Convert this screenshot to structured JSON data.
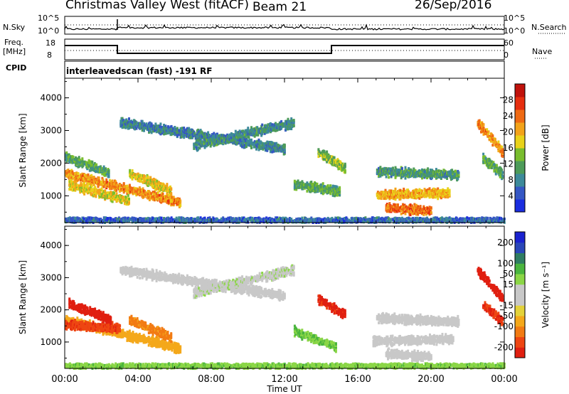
{
  "header": {
    "station": "Christmas Valley West (fitACF)",
    "beam": "Beam 21",
    "date": "26/Sep/2016",
    "cpid_label": "CPID",
    "cpid_value": "interleavedscan (fast) -191 RF"
  },
  "nsky_panel": {
    "left_label": "N.Sky",
    "right_label": "N.Search",
    "left_ticks": [
      "10^5",
      "10^0"
    ],
    "right_ticks": [
      "10^5",
      "10^0"
    ]
  },
  "freq_panel": {
    "left_label_line1": "Freq.",
    "left_label_line2": "[MHz]",
    "right_label": "Nave",
    "left_ticks": [
      "18",
      "8"
    ],
    "right_ticks": [
      "60",
      "0"
    ]
  },
  "colors": {
    "power": [
      "#1a2ddf",
      "#3557c4",
      "#3d8a9a",
      "#4d9b59",
      "#79bd2e",
      "#e9d21a",
      "#f3a31a",
      "#ef6a13",
      "#e62e0f",
      "#c0120b"
    ],
    "velocity_neg": [
      "#e01f10",
      "#ee4612",
      "#f27b13",
      "#f4a81a",
      "#e3d23a"
    ],
    "velocity_pos": [
      "#8bd646",
      "#4ab53e",
      "#2f7c62",
      "#2a47b8",
      "#1a22cf"
    ],
    "velocity_ground": "#c8c8c8"
  },
  "chart_data": [
    {
      "type": "heatmap",
      "name": "power",
      "xlabel": "",
      "ylabel": "Slant Range [km]",
      "colorbar_label": "Power [dB]",
      "colorbar_ticks": [
        "4",
        "8",
        "12",
        "16",
        "20",
        "24",
        "28"
      ],
      "colorbar_range": [
        0,
        32
      ],
      "ylim": [
        180,
        4600
      ],
      "y_ticks": [
        "1000",
        "2000",
        "3000",
        "4000"
      ],
      "xlim": [
        0,
        24
      ],
      "echo_regions": [
        {
          "start_hr": 0.0,
          "end_hr": 6.3,
          "range_start_km": 1750,
          "range_end_km": 850,
          "value": 22
        },
        {
          "start_hr": 0.2,
          "end_hr": 3.5,
          "range_start_km": 1400,
          "range_end_km": 900,
          "value": 18
        },
        {
          "start_hr": 0.0,
          "end_hr": 2.4,
          "range_start_km": 2250,
          "range_end_km": 1750,
          "value": 11
        },
        {
          "start_hr": 3.5,
          "end_hr": 5.8,
          "range_start_km": 1750,
          "range_end_km": 1200,
          "value": 18
        },
        {
          "start_hr": 3.0,
          "end_hr": 12.0,
          "range_start_km": 3300,
          "range_end_km": 2500,
          "value": 8
        },
        {
          "start_hr": 7.0,
          "end_hr": 12.5,
          "range_start_km": 2600,
          "range_end_km": 3300,
          "value": 9
        },
        {
          "start_hr": 12.5,
          "end_hr": 15.0,
          "range_start_km": 1400,
          "range_end_km": 1200,
          "value": 12
        },
        {
          "start_hr": 13.8,
          "end_hr": 15.3,
          "range_start_km": 2400,
          "range_end_km": 1900,
          "value": 14
        },
        {
          "start_hr": 17.0,
          "end_hr": 21.0,
          "range_start_km": 1100,
          "range_end_km": 1150,
          "value": 20
        },
        {
          "start_hr": 17.5,
          "end_hr": 20.0,
          "range_start_km": 700,
          "range_end_km": 600,
          "value": 24
        },
        {
          "start_hr": 17.0,
          "end_hr": 21.5,
          "range_start_km": 1800,
          "range_end_km": 1700,
          "value": 10
        },
        {
          "start_hr": 22.5,
          "end_hr": 23.9,
          "range_start_km": 3300,
          "range_end_km": 2400,
          "value": 22
        },
        {
          "start_hr": 22.8,
          "end_hr": 23.9,
          "range_start_km": 2200,
          "range_end_km": 1700,
          "value": 12
        },
        {
          "start_hr": 0.0,
          "end_hr": 24.0,
          "range_start_km": 320,
          "range_end_km": 320,
          "value": 6
        }
      ]
    },
    {
      "type": "heatmap",
      "name": "velocity",
      "xlabel": "Time UT",
      "ylabel": "Slant Range [km]",
      "colorbar_label": "Velocity [m s⁻¹]",
      "colorbar_ticks": [
        "-200",
        "-100",
        "-50",
        "-15",
        "15",
        "50",
        "100",
        "200"
      ],
      "colorbar_range": [
        -250,
        250
      ],
      "ylim": [
        180,
        4600
      ],
      "y_ticks": [
        "1000",
        "2000",
        "3000",
        "4000"
      ],
      "x_ticks": [
        "00:00",
        "04:00",
        "08:00",
        "12:00",
        "16:00",
        "20:00",
        "00:00"
      ],
      "xlim": [
        0,
        24
      ],
      "echo_regions": [
        {
          "start_hr": 0.0,
          "end_hr": 6.3,
          "range_start_km": 1750,
          "range_end_km": 850,
          "value": -60
        },
        {
          "start_hr": 0.0,
          "end_hr": 3.0,
          "range_start_km": 1600,
          "range_end_km": 1500,
          "value": -150
        },
        {
          "start_hr": 0.2,
          "end_hr": 2.5,
          "range_start_km": 2250,
          "range_end_km": 1750,
          "value": -180
        },
        {
          "start_hr": 3.5,
          "end_hr": 5.8,
          "range_start_km": 1750,
          "range_end_km": 1200,
          "value": -90
        },
        {
          "start_hr": 3.0,
          "end_hr": 12.0,
          "range_start_km": 3300,
          "range_end_km": 2500,
          "value": 0
        },
        {
          "start_hr": 7.0,
          "end_hr": 12.5,
          "range_start_km": 2600,
          "range_end_km": 3300,
          "value": 5
        },
        {
          "start_hr": 12.5,
          "end_hr": 14.8,
          "range_start_km": 1400,
          "range_end_km": 900,
          "value": 40
        },
        {
          "start_hr": 13.8,
          "end_hr": 15.3,
          "range_start_km": 2400,
          "range_end_km": 1900,
          "value": -170
        },
        {
          "start_hr": 16.8,
          "end_hr": 21.2,
          "range_start_km": 1100,
          "range_end_km": 1150,
          "value": 0
        },
        {
          "start_hr": 17.5,
          "end_hr": 20.0,
          "range_start_km": 700,
          "range_end_km": 600,
          "value": 0
        },
        {
          "start_hr": 17.0,
          "end_hr": 21.5,
          "range_start_km": 1800,
          "range_end_km": 1700,
          "value": 0
        },
        {
          "start_hr": 22.5,
          "end_hr": 23.9,
          "range_start_km": 3300,
          "range_end_km": 2400,
          "value": -200
        },
        {
          "start_hr": 22.8,
          "end_hr": 23.9,
          "range_start_km": 2200,
          "range_end_km": 1700,
          "value": -160
        },
        {
          "start_hr": 0.0,
          "end_hr": 24.0,
          "range_start_km": 320,
          "range_end_km": 320,
          "value": 30
        }
      ]
    }
  ]
}
